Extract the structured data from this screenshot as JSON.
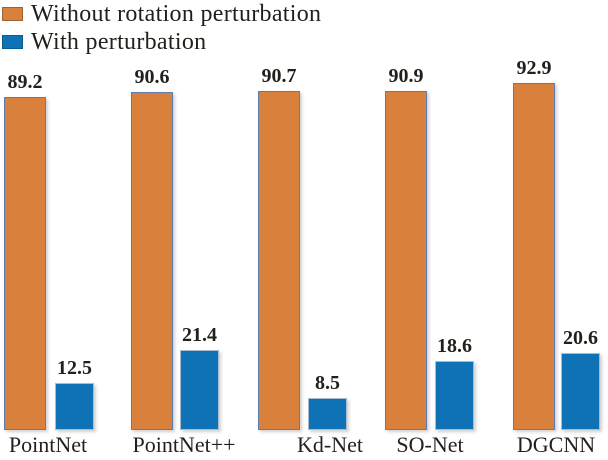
{
  "legend": {
    "items": [
      {
        "label": "Without rotation perturbation",
        "color": "#D9813C"
      },
      {
        "label": "With perturbation",
        "color": "#0F72B6"
      }
    ]
  },
  "chart_data": {
    "type": "bar",
    "categories": [
      "PointNet",
      "PointNet++",
      "Kd-Net",
      "SO-Net",
      "DGCNN"
    ],
    "series": [
      {
        "name": "Without rotation perturbation",
        "color": "#D9813C",
        "border_color": "#5C7BB0",
        "values": [
          89.2,
          90.6,
          90.7,
          90.9,
          92.9
        ]
      },
      {
        "name": "With perturbation",
        "color": "#0F72B6",
        "border_color": "#A9BCD2",
        "values": [
          12.5,
          21.4,
          8.5,
          18.6,
          20.6
        ]
      }
    ],
    "value_labels": true,
    "title": "",
    "xlabel": "",
    "ylabel": "",
    "ylim": [
      0,
      100
    ],
    "grid": false,
    "axes_visible": false,
    "legend_position": "top-left",
    "colors": {
      "background": "#FFFFFF",
      "text": "#231F1A"
    }
  }
}
